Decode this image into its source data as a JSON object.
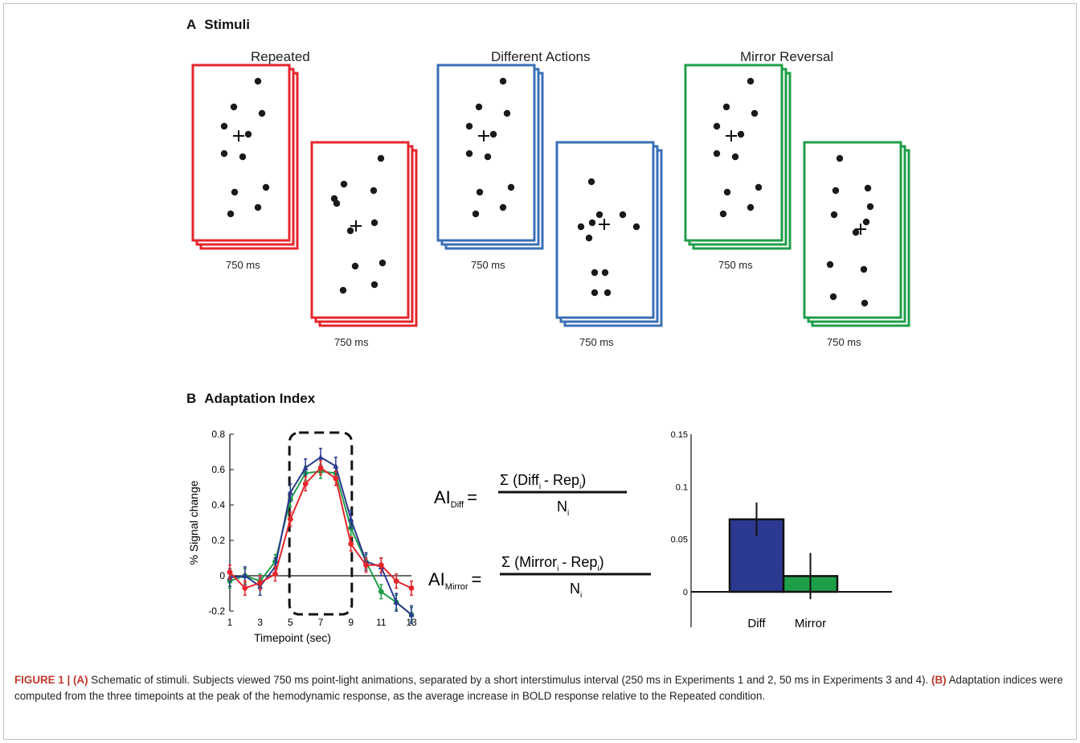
{
  "panel_a": {
    "letter": "A",
    "title": "Stimuli",
    "conditions": [
      {
        "name": "Repeated",
        "color": "#e5262b",
        "durations": [
          "750 ms",
          "750 ms"
        ]
      },
      {
        "name": "Different Actions",
        "color": "#3a6fb7",
        "durations": [
          "750 ms",
          "750 ms"
        ]
      },
      {
        "name": "Mirror Reversal",
        "color": "#1f9e49",
        "durations": [
          "750 ms",
          "750 ms"
        ]
      }
    ]
  },
  "panel_b": {
    "letter": "B",
    "title": "Adaptation Index"
  },
  "formulas": {
    "diff": {
      "lhs_main": "AI",
      "lhs_sub": "Diff",
      "eq": "=",
      "num_sigma": "Σ",
      "num_a": "(Diff",
      "num_a_sub": "i",
      "num_minus": "- Rep",
      "num_b_sub": "i",
      "num_close": ")",
      "den": "N",
      "den_sub": "i"
    },
    "mirror": {
      "lhs_main": "AI",
      "lhs_sub": "Mirror",
      "eq": "=",
      "num_sigma": "Σ",
      "num_a": "(Mirror",
      "num_a_sub": "i",
      "num_minus": "- Rep",
      "num_b_sub": "i",
      "num_close": ")",
      "den": "N",
      "den_sub": "i"
    }
  },
  "chart_data": [
    {
      "type": "line",
      "xlabel": "Timepoint (sec)",
      "ylabel": "% Signal change",
      "xlim": [
        1,
        13
      ],
      "ylim": [
        -0.2,
        0.8
      ],
      "x_ticks": [
        "1",
        "3",
        "5",
        "7",
        "9",
        "11",
        "13"
      ],
      "y_ticks": [
        "-0.2",
        "0",
        "0.2",
        "0.4",
        "0.6",
        "0.8"
      ],
      "highlight_window": [
        6,
        8
      ],
      "series": [
        {
          "color": "#1f9e49",
          "x": [
            1,
            2,
            3,
            4,
            5,
            6,
            7,
            8,
            9,
            10,
            11,
            12,
            13
          ],
          "y": [
            -0.03,
            0.0,
            -0.03,
            0.08,
            0.43,
            0.58,
            0.59,
            0.58,
            0.27,
            0.08,
            -0.09,
            -0.15,
            -0.22
          ],
          "err": [
            0.04,
            0.04,
            0.04,
            0.04,
            0.04,
            0.04,
            0.04,
            0.04,
            0.04,
            0.04,
            0.04,
            0.04,
            0.04
          ]
        },
        {
          "color": "#2b3990",
          "x": [
            1,
            2,
            3,
            4,
            5,
            6,
            7,
            8,
            9,
            10,
            11,
            12,
            13
          ],
          "y": [
            -0.01,
            0.0,
            -0.06,
            0.05,
            0.47,
            0.61,
            0.67,
            0.62,
            0.32,
            0.08,
            0.05,
            -0.15,
            -0.22
          ],
          "err": [
            0.05,
            0.05,
            0.05,
            0.05,
            0.05,
            0.05,
            0.05,
            0.05,
            0.05,
            0.05,
            0.05,
            0.05,
            0.05
          ]
        },
        {
          "color": "#e5262b",
          "x": [
            1,
            2,
            3,
            4,
            5,
            6,
            7,
            8,
            9,
            10,
            11,
            12,
            13
          ],
          "y": [
            0.02,
            -0.07,
            -0.04,
            0.01,
            0.32,
            0.52,
            0.61,
            0.55,
            0.18,
            0.06,
            0.06,
            -0.03,
            -0.07
          ],
          "err": [
            0.04,
            0.04,
            0.04,
            0.04,
            0.04,
            0.04,
            0.04,
            0.04,
            0.04,
            0.04,
            0.04,
            0.04,
            0.04
          ]
        }
      ]
    },
    {
      "type": "bar",
      "categories": [
        "Diff",
        "Mirror"
      ],
      "values": [
        0.069,
        0.015
      ],
      "errors": [
        0.016,
        0.022
      ],
      "colors": [
        "#2b3990",
        "#1f9e49"
      ],
      "ylim": [
        0,
        0.15
      ],
      "y_ticks": [
        "0",
        "0.05",
        "0.1",
        "0.15"
      ]
    }
  ],
  "caption": {
    "label": "FIGURE 1 |",
    "a_tag": "(A)",
    "a_text": "Schematic of stimuli. Subjects viewed 750 ms point-light animations, separated by a short interstimulus interval (250 ms in Experiments 1 and 2, 50 ms in Experiments 3 and 4).",
    "b_tag": "(B)",
    "b_text": "Adaptation indices were computed from the three timepoints at the peak of the hemodynamic response, as the average increase in BOLD response relative to the Repeated condition."
  }
}
